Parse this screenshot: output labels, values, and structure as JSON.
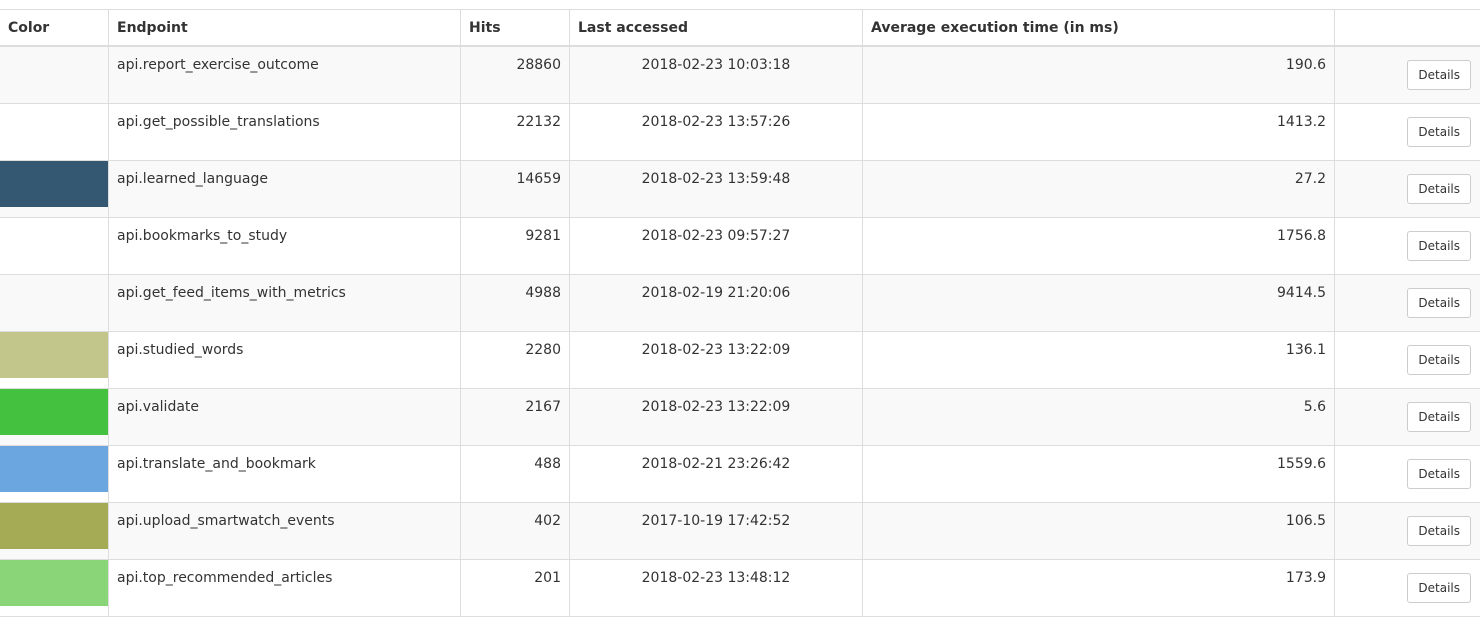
{
  "table": {
    "headers": {
      "color": "Color",
      "endpoint": "Endpoint",
      "hits": "Hits",
      "last_accessed": "Last accessed",
      "avg_time": "Average execution time (in ms)",
      "actions": ""
    },
    "button_label": "Details",
    "rows": [
      {
        "color": "#f9f9f9",
        "endpoint": "api.report_exercise_outcome",
        "hits": "28860",
        "last_accessed": "2018-02-23 10:03:18",
        "avg_time": "190.6"
      },
      {
        "color": "#ffffff",
        "endpoint": "api.get_possible_translations",
        "hits": "22132",
        "last_accessed": "2018-02-23 13:57:26",
        "avg_time": "1413.2"
      },
      {
        "color": "#355872",
        "endpoint": "api.learned_language",
        "hits": "14659",
        "last_accessed": "2018-02-23 13:59:48",
        "avg_time": "27.2"
      },
      {
        "color": "#ffffff",
        "endpoint": "api.bookmarks_to_study",
        "hits": "9281",
        "last_accessed": "2018-02-23 09:57:27",
        "avg_time": "1756.8"
      },
      {
        "color": "#f9f9f9",
        "endpoint": "api.get_feed_items_with_metrics",
        "hits": "4988",
        "last_accessed": "2018-02-19 21:20:06",
        "avg_time": "9414.5"
      },
      {
        "color": "#c3c68b",
        "endpoint": "api.studied_words",
        "hits": "2280",
        "last_accessed": "2018-02-23 13:22:09",
        "avg_time": "136.1"
      },
      {
        "color": "#43c13f",
        "endpoint": "api.validate",
        "hits": "2167",
        "last_accessed": "2018-02-23 13:22:09",
        "avg_time": "5.6"
      },
      {
        "color": "#6ba6e0",
        "endpoint": "api.translate_and_bookmark",
        "hits": "488",
        "last_accessed": "2018-02-21 23:26:42",
        "avg_time": "1559.6"
      },
      {
        "color": "#a5ab54",
        "endpoint": "api.upload_smartwatch_events",
        "hits": "402",
        "last_accessed": "2017-10-19 17:42:52",
        "avg_time": "106.5"
      },
      {
        "color": "#8ad577",
        "endpoint": "api.top_recommended_articles",
        "hits": "201",
        "last_accessed": "2018-02-23 13:48:12",
        "avg_time": "173.9"
      }
    ]
  }
}
